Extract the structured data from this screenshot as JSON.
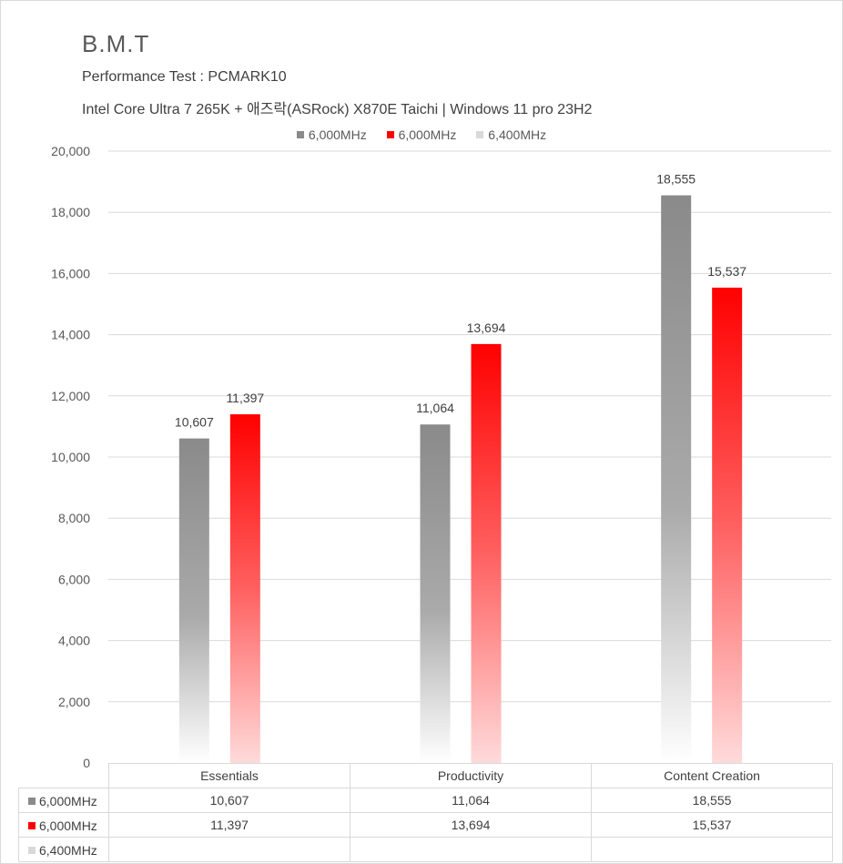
{
  "title": "B.M.T",
  "subtitle": "Performance Test : PCMARK10",
  "system": "Intel Core Ultra 7 265K + 애즈락(ASRock) X870E Taichi | Windows 11 pro 23H2",
  "colors": {
    "gray": "#8a8a8a",
    "red": "#ff0000",
    "light": "#d9d9d9",
    "grid": "#d9d9d9"
  },
  "chart_data": {
    "type": "bar",
    "categories": [
      "Essentials",
      "Productivity",
      "Content Creation"
    ],
    "series": [
      {
        "name": "6,000MHz",
        "values": [
          10607,
          11064,
          18555
        ],
        "labels": [
          "10,607",
          "11,064",
          "18,555"
        ],
        "color": "gray"
      },
      {
        "name": "6,000MHz",
        "values": [
          11397,
          13694,
          15537
        ],
        "labels": [
          "11,397",
          "13,694",
          "15,537"
        ],
        "color": "red"
      },
      {
        "name": "6,400MHz",
        "values": [
          null,
          null,
          null
        ],
        "labels": [
          "",
          "",
          ""
        ],
        "color": "light"
      }
    ],
    "ylim": [
      0,
      20000
    ],
    "yticks": [
      "0",
      "2,000",
      "4,000",
      "6,000",
      "8,000",
      "10,000",
      "12,000",
      "14,000",
      "16,000",
      "18,000",
      "20,000"
    ],
    "legend_position": "top",
    "grid": true,
    "data_table": true
  }
}
